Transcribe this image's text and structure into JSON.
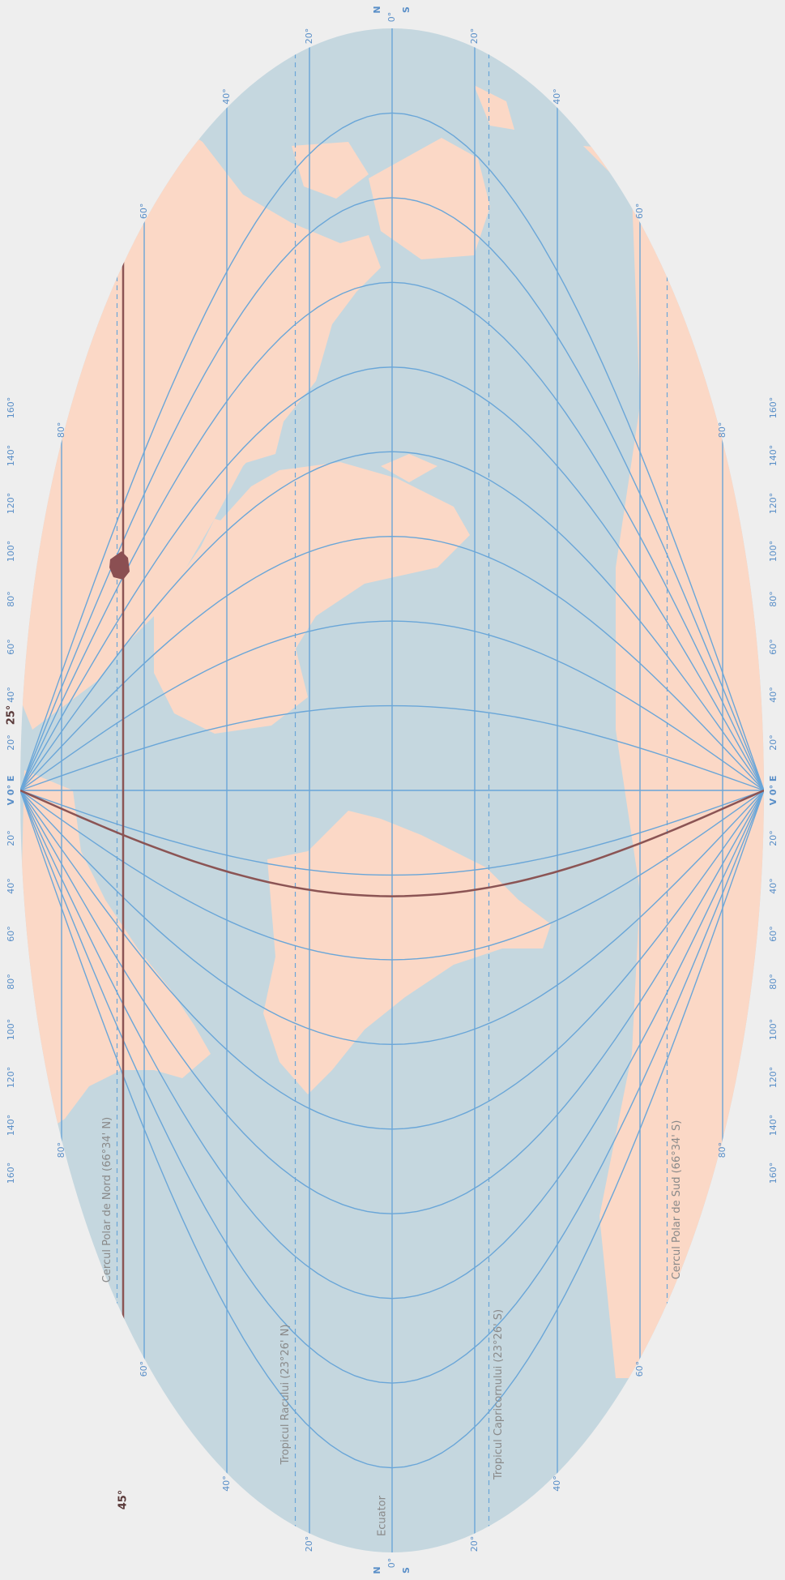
{
  "map": {
    "colors": {
      "background": "#eeeeee",
      "ocean": "#c5d7df",
      "land": "#fbd8c6",
      "graticule": "#6aa6d8",
      "graticule_label": "#5a8fc8",
      "highlight": "#8b5454",
      "country": "#8b4f52",
      "special_label": "#8a8a8a"
    },
    "parallel_labels": {
      "left": [
        "80°",
        "60°",
        "40°",
        "20°",
        "0°",
        "20°",
        "40°",
        "60°",
        "80°"
      ],
      "right": [
        "80°",
        "60°",
        "40°",
        "20°",
        "0°",
        "20°",
        "40°",
        "60°",
        "80°"
      ]
    },
    "pole_labels": {
      "north": "N",
      "south": "S"
    },
    "meridian_labels": {
      "top": [
        "160°",
        "140°",
        "120°",
        "100°",
        "80°",
        "60°",
        "40°",
        "20°",
        "V 0° E",
        "20°",
        "40°",
        "60°",
        "80°",
        "100°",
        "120°",
        "140°",
        "160°"
      ],
      "bottom": [
        "160°",
        "140°",
        "120°",
        "100°",
        "80°",
        "60°",
        "40°",
        "20°",
        "V 0° E",
        "20°",
        "40°",
        "60°",
        "80°",
        "100°",
        "120°",
        "140°",
        "160°"
      ]
    },
    "special_lines": {
      "arctic_circle": "Cercul Polar de Nord (66°34' N)",
      "tropic_cancer": "Tropicul Racului (23°26' N)",
      "equator": "Ecuator",
      "tropic_capricorn": "Tropicul Capricornului (23°26' S)",
      "antarctic_circle": "Cercul Polar de Sud (66°34' S)"
    },
    "highlight": {
      "longitude_label": "25°",
      "latitude_label": "45°"
    }
  }
}
